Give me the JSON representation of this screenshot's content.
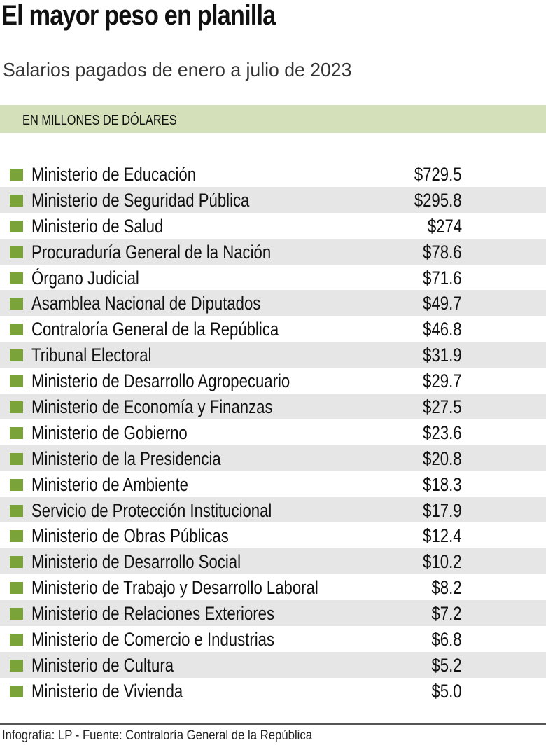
{
  "title": "El mayor peso en planilla",
  "subtitle": "Salarios pagados de enero a julio de 2023",
  "unit": "EN MILLONES DE DÓLARES",
  "footer": "Infografía: LP - Fuente: Contraloría General de la República",
  "colors": {
    "marker": "#7aa43a",
    "band": "#d3e0b9",
    "stripe": "#e6e6e6"
  },
  "chart_data": {
    "type": "table",
    "title": "El mayor peso en planilla",
    "subtitle": "Salarios pagados de enero a julio de 2023",
    "unit": "EN MILLONES DE DÓLARES",
    "rows": [
      {
        "label": "Ministerio de Educación",
        "value": "$729.5"
      },
      {
        "label": "Ministerio de Seguridad Pública",
        "value": "$295.8"
      },
      {
        "label": "Ministerio de Salud",
        "value": "$274"
      },
      {
        "label": "Procuraduría General de la Nación",
        "value": "$78.6"
      },
      {
        "label": "Órgano Judicial",
        "value": "$71.6"
      },
      {
        "label": "Asamblea Nacional de Diputados",
        "value": "$49.7"
      },
      {
        "label": "Contraloría General de la República",
        "value": "$46.8"
      },
      {
        "label": "Tribunal Electoral",
        "value": "$31.9"
      },
      {
        "label": "Ministerio de Desarrollo Agropecuario",
        "value": "$29.7"
      },
      {
        "label": "Ministerio de Economía y Finanzas",
        "value": "$27.5"
      },
      {
        "label": "Ministerio de Gobierno",
        "value": "$23.6"
      },
      {
        "label": "Ministerio de la Presidencia",
        "value": "$20.8"
      },
      {
        "label": "Ministerio de Ambiente",
        "value": "$18.3"
      },
      {
        "label": "Servicio de Protección Institucional",
        "value": "$17.9"
      },
      {
        "label": "Ministerio de Obras Públicas",
        "value": "$12.4"
      },
      {
        "label": "Ministerio de Desarrollo Social",
        "value": "$10.2"
      },
      {
        "label": "Ministerio de Trabajo y Desarrollo Laboral",
        "value": "$8.2"
      },
      {
        "label": "Ministerio de Relaciones Exteriores",
        "value": "$7.2"
      },
      {
        "label": "Ministerio de Comercio e Industrias",
        "value": "$6.8"
      },
      {
        "label": "Ministerio de Cultura",
        "value": "$5.2"
      },
      {
        "label": "Ministerio de Vivienda",
        "value": "$5.0"
      }
    ]
  }
}
